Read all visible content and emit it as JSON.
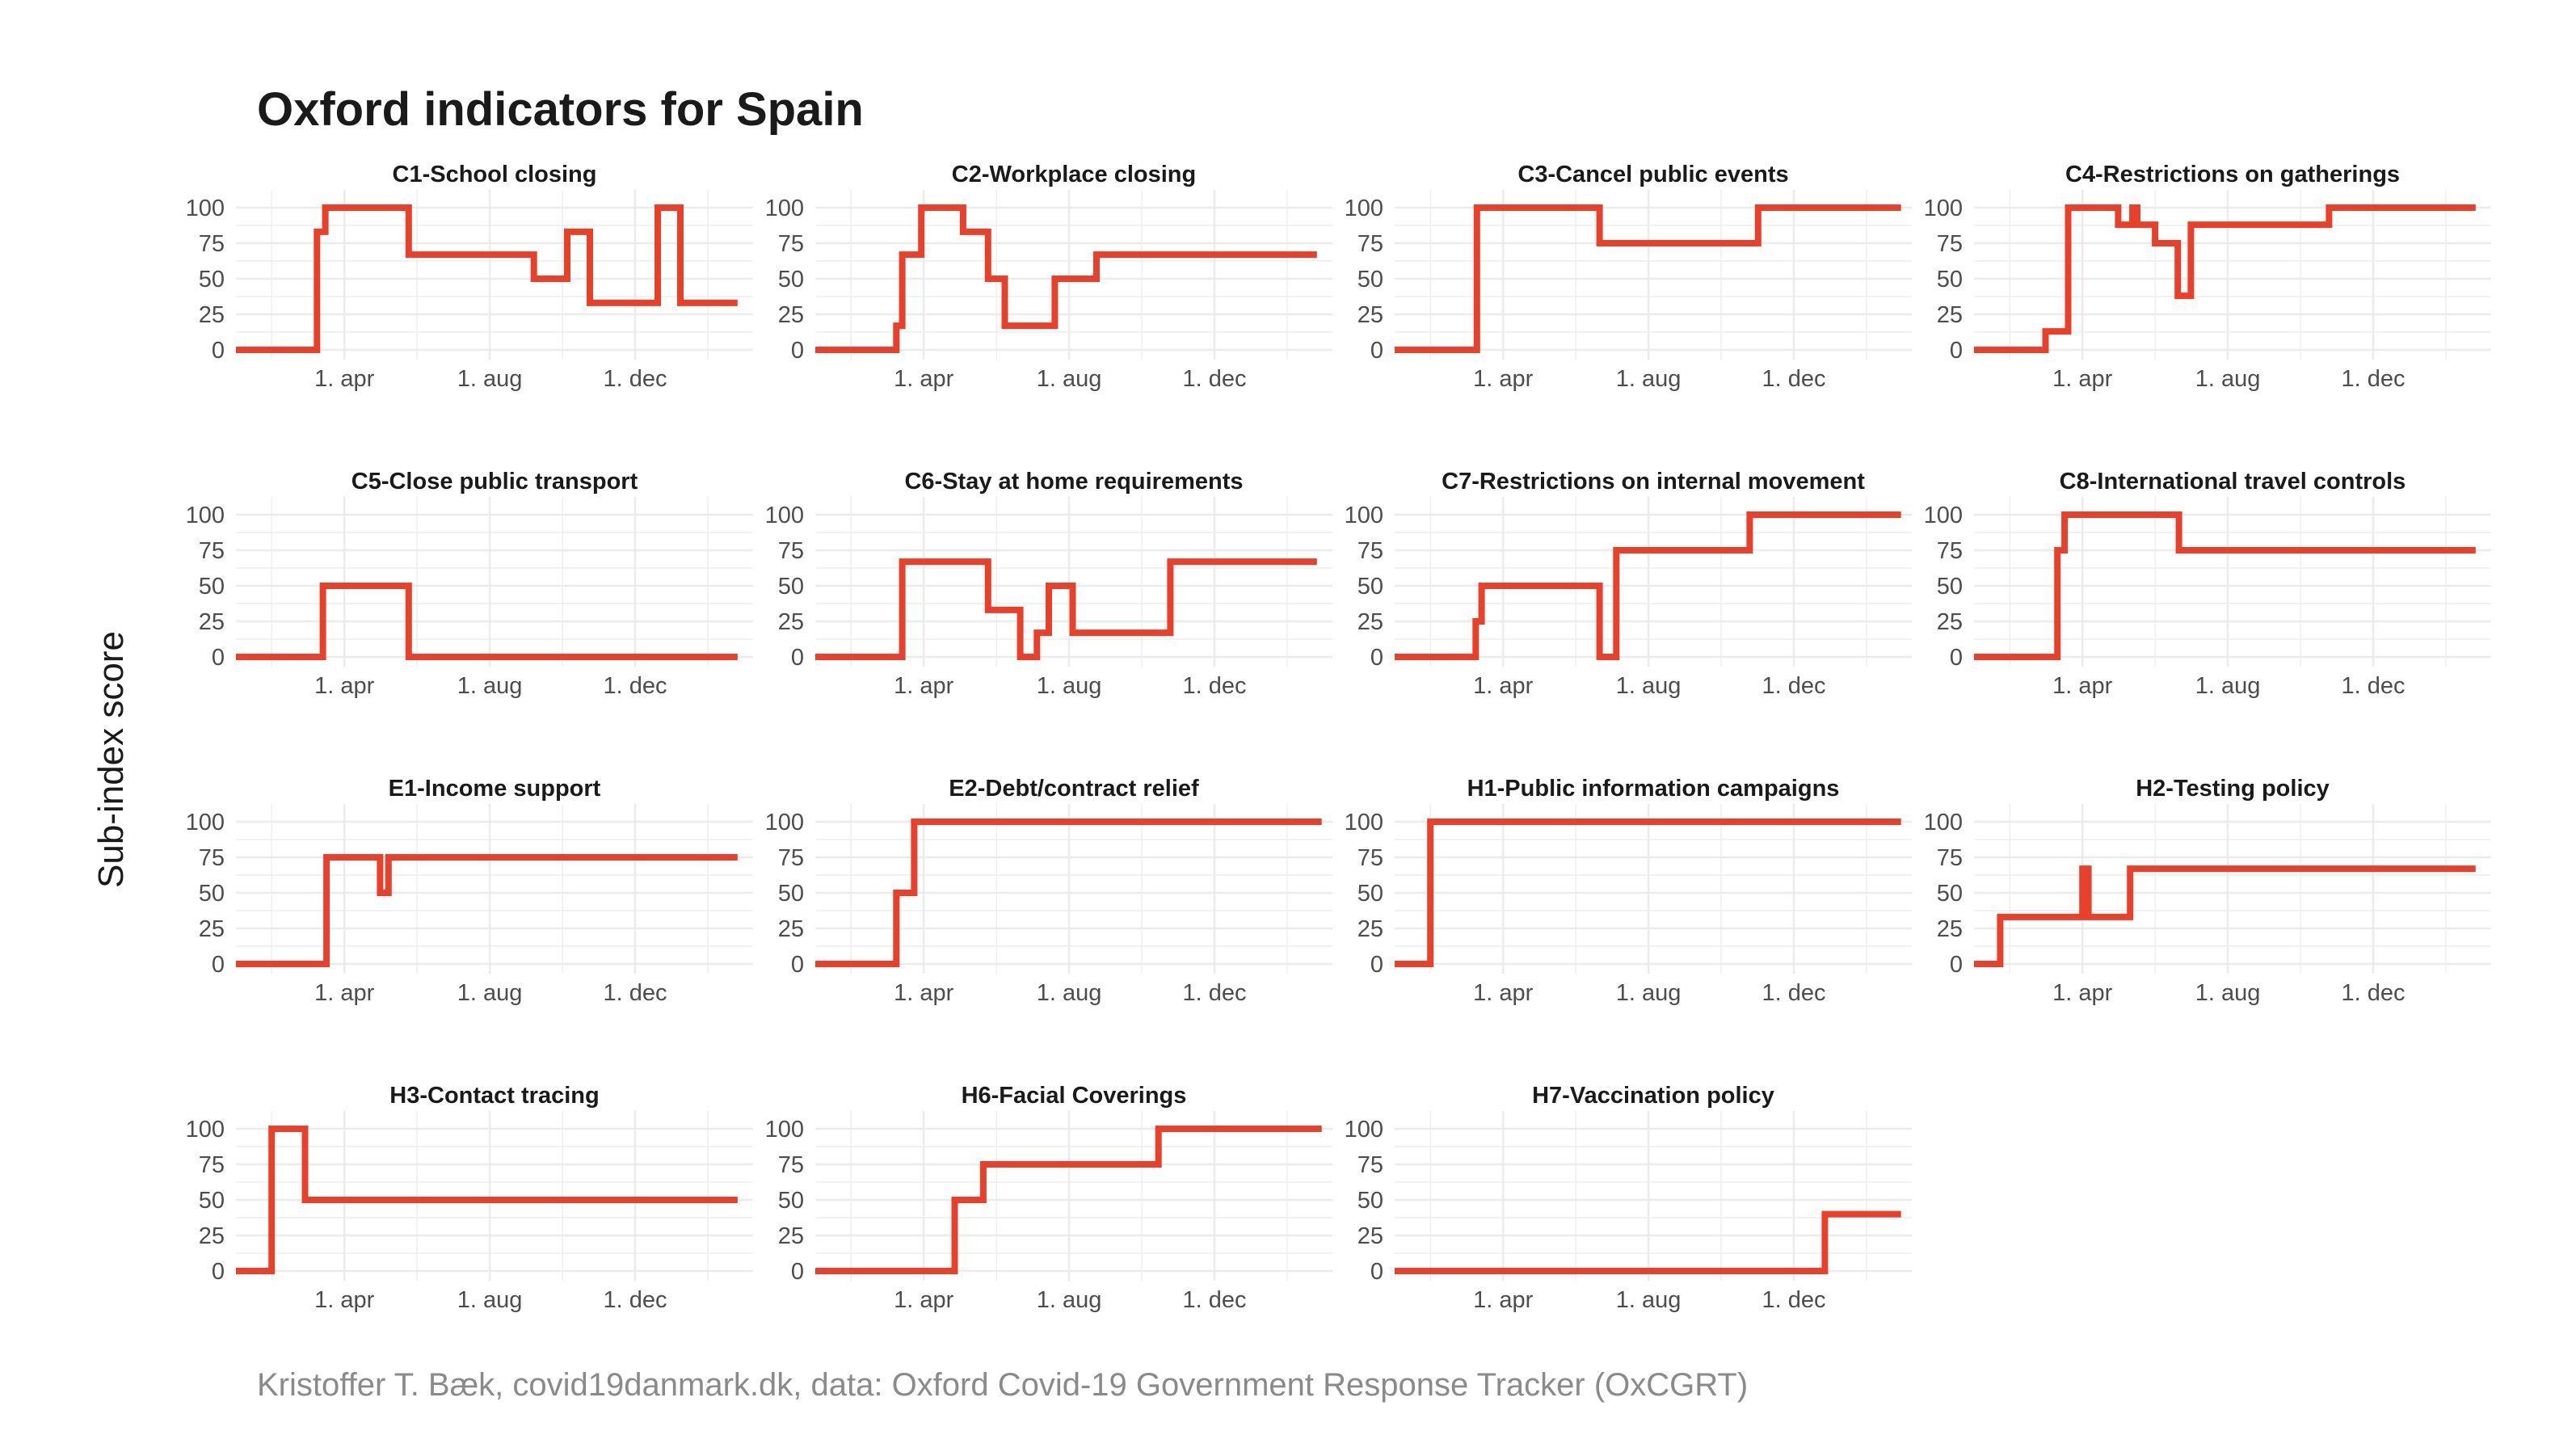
{
  "title": "Oxford indicators for Spain",
  "ylabel": "Sub-index score",
  "caption": "Kristoffer T. Bæk, covid19danmark.dk, data: Oxford Covid-19 Government Response Tracker (OxCGRT)",
  "colors": {
    "line": "#e8402a",
    "grid": "#ebebeb"
  },
  "chart_data": {
    "type": "line",
    "layout": "facet grid, 4 columns",
    "ylim": [
      0,
      100
    ],
    "yticks": [
      0,
      25,
      50,
      75,
      100
    ],
    "xlim": [
      "2020-01-01",
      "2021-03-10"
    ],
    "xticks": [
      {
        "date": "2020-04-01",
        "label": "1. apr"
      },
      {
        "date": "2020-08-01",
        "label": "1. aug"
      },
      {
        "date": "2020-12-01",
        "label": "1. dec"
      }
    ],
    "grid": true,
    "legend": "none",
    "series": [
      {
        "name": "C1-School closing",
        "points": [
          [
            "2020-01-01",
            0
          ],
          [
            "2020-03-09",
            0
          ],
          [
            "2020-03-09",
            83
          ],
          [
            "2020-03-16",
            83
          ],
          [
            "2020-03-16",
            100
          ],
          [
            "2020-05-25",
            100
          ],
          [
            "2020-05-25",
            67
          ],
          [
            "2020-09-07",
            67
          ],
          [
            "2020-09-07",
            50
          ],
          [
            "2020-10-05",
            50
          ],
          [
            "2020-10-05",
            83
          ],
          [
            "2020-10-24",
            83
          ],
          [
            "2020-10-24",
            33
          ],
          [
            "2020-12-20",
            33
          ],
          [
            "2020-12-20",
            100
          ],
          [
            "2021-01-08",
            100
          ],
          [
            "2021-01-08",
            33
          ],
          [
            "2021-02-25",
            33
          ]
        ]
      },
      {
        "name": "C2-Workplace closing",
        "points": [
          [
            "2020-01-01",
            0
          ],
          [
            "2020-03-09",
            0
          ],
          [
            "2020-03-09",
            17
          ],
          [
            "2020-03-14",
            17
          ],
          [
            "2020-03-14",
            67
          ],
          [
            "2020-03-30",
            67
          ],
          [
            "2020-03-30",
            100
          ],
          [
            "2020-05-04",
            100
          ],
          [
            "2020-05-04",
            83
          ],
          [
            "2020-05-25",
            83
          ],
          [
            "2020-05-25",
            50
          ],
          [
            "2020-06-08",
            50
          ],
          [
            "2020-06-08",
            17
          ],
          [
            "2020-07-20",
            17
          ],
          [
            "2020-07-20",
            50
          ],
          [
            "2020-08-24",
            50
          ],
          [
            "2020-08-24",
            67
          ],
          [
            "2021-02-25",
            67
          ]
        ]
      },
      {
        "name": "C3-Cancel public events",
        "points": [
          [
            "2020-01-01",
            0
          ],
          [
            "2020-03-10",
            0
          ],
          [
            "2020-03-10",
            100
          ],
          [
            "2020-06-21",
            100
          ],
          [
            "2020-06-21",
            75
          ],
          [
            "2020-11-01",
            75
          ],
          [
            "2020-11-01",
            100
          ],
          [
            "2021-03-01",
            100
          ]
        ]
      },
      {
        "name": "C4-Restrictions on gatherings",
        "points": [
          [
            "2020-01-01",
            0
          ],
          [
            "2020-03-01",
            0
          ],
          [
            "2020-03-01",
            13
          ],
          [
            "2020-03-20",
            13
          ],
          [
            "2020-03-20",
            100
          ],
          [
            "2020-05-01",
            100
          ],
          [
            "2020-05-01",
            88
          ],
          [
            "2020-05-13",
            88
          ],
          [
            "2020-05-13",
            100
          ],
          [
            "2020-05-17",
            100
          ],
          [
            "2020-05-17",
            88
          ],
          [
            "2020-06-01",
            88
          ],
          [
            "2020-06-01",
            75
          ],
          [
            "2020-06-20",
            75
          ],
          [
            "2020-06-20",
            38
          ],
          [
            "2020-07-01",
            38
          ],
          [
            "2020-07-01",
            88
          ],
          [
            "2020-10-25",
            88
          ],
          [
            "2020-10-25",
            100
          ],
          [
            "2021-02-25",
            100
          ]
        ]
      },
      {
        "name": "C5-Close public transport",
        "points": [
          [
            "2020-01-01",
            0
          ],
          [
            "2020-03-14",
            0
          ],
          [
            "2020-03-14",
            50
          ],
          [
            "2020-05-25",
            50
          ],
          [
            "2020-05-25",
            0
          ],
          [
            "2021-02-25",
            0
          ]
        ]
      },
      {
        "name": "C6-Stay at home requirements",
        "points": [
          [
            "2020-01-01",
            0
          ],
          [
            "2020-03-14",
            0
          ],
          [
            "2020-03-14",
            67
          ],
          [
            "2020-05-25",
            67
          ],
          [
            "2020-05-25",
            33
          ],
          [
            "2020-06-21",
            33
          ],
          [
            "2020-06-21",
            0
          ],
          [
            "2020-07-05",
            0
          ],
          [
            "2020-07-05",
            17
          ],
          [
            "2020-07-15",
            17
          ],
          [
            "2020-07-15",
            50
          ],
          [
            "2020-08-04",
            50
          ],
          [
            "2020-08-04",
            17
          ],
          [
            "2020-10-25",
            17
          ],
          [
            "2020-10-25",
            67
          ],
          [
            "2021-02-25",
            67
          ]
        ]
      },
      {
        "name": "C7-Restrictions on internal movement",
        "points": [
          [
            "2020-01-01",
            0
          ],
          [
            "2020-03-09",
            0
          ],
          [
            "2020-03-09",
            25
          ],
          [
            "2020-03-14",
            25
          ],
          [
            "2020-03-14",
            50
          ],
          [
            "2020-06-21",
            50
          ],
          [
            "2020-06-21",
            0
          ],
          [
            "2020-07-05",
            0
          ],
          [
            "2020-07-05",
            75
          ],
          [
            "2020-10-25",
            75
          ],
          [
            "2020-10-25",
            100
          ],
          [
            "2021-03-01",
            100
          ]
        ]
      },
      {
        "name": "C8-International travel controls",
        "points": [
          [
            "2020-01-01",
            0
          ],
          [
            "2020-03-11",
            0
          ],
          [
            "2020-03-11",
            75
          ],
          [
            "2020-03-17",
            75
          ],
          [
            "2020-03-17",
            100
          ],
          [
            "2020-06-21",
            100
          ],
          [
            "2020-06-21",
            75
          ],
          [
            "2021-02-25",
            75
          ]
        ]
      },
      {
        "name": "E1-Income support",
        "points": [
          [
            "2020-01-01",
            0
          ],
          [
            "2020-03-17",
            0
          ],
          [
            "2020-03-17",
            75
          ],
          [
            "2020-05-01",
            75
          ],
          [
            "2020-05-01",
            50
          ],
          [
            "2020-05-08",
            50
          ],
          [
            "2020-05-08",
            75
          ],
          [
            "2021-02-25",
            75
          ]
        ]
      },
      {
        "name": "E2-Debt/contract relief",
        "points": [
          [
            "2020-01-01",
            0
          ],
          [
            "2020-03-09",
            0
          ],
          [
            "2020-03-09",
            50
          ],
          [
            "2020-03-24",
            50
          ],
          [
            "2020-03-24",
            100
          ],
          [
            "2021-03-01",
            100
          ]
        ]
      },
      {
        "name": "H1-Public information campaigns",
        "points": [
          [
            "2020-01-01",
            0
          ],
          [
            "2020-01-31",
            0
          ],
          [
            "2020-01-31",
            100
          ],
          [
            "2021-03-01",
            100
          ]
        ]
      },
      {
        "name": "H2-Testing policy",
        "points": [
          [
            "2020-01-01",
            0
          ],
          [
            "2020-01-23",
            0
          ],
          [
            "2020-01-23",
            33
          ],
          [
            "2020-04-01",
            33
          ],
          [
            "2020-04-01",
            67
          ],
          [
            "2020-04-06",
            67
          ],
          [
            "2020-04-06",
            33
          ],
          [
            "2020-05-11",
            33
          ],
          [
            "2020-05-11",
            67
          ],
          [
            "2021-02-25",
            67
          ]
        ]
      },
      {
        "name": "H3-Contact tracing",
        "points": [
          [
            "2020-01-01",
            0
          ],
          [
            "2020-01-31",
            0
          ],
          [
            "2020-01-31",
            100
          ],
          [
            "2020-02-28",
            100
          ],
          [
            "2020-02-28",
            50
          ],
          [
            "2021-02-25",
            50
          ]
        ]
      },
      {
        "name": "H6-Facial Coverings",
        "points": [
          [
            "2020-01-01",
            0
          ],
          [
            "2020-04-27",
            0
          ],
          [
            "2020-04-27",
            50
          ],
          [
            "2020-05-21",
            50
          ],
          [
            "2020-05-21",
            75
          ],
          [
            "2020-10-15",
            75
          ],
          [
            "2020-10-15",
            100
          ],
          [
            "2021-03-01",
            100
          ]
        ]
      },
      {
        "name": "H7-Vaccination policy",
        "points": [
          [
            "2020-01-01",
            0
          ],
          [
            "2020-12-27",
            0
          ],
          [
            "2020-12-27",
            40
          ],
          [
            "2021-03-01",
            40
          ]
        ]
      }
    ]
  }
}
